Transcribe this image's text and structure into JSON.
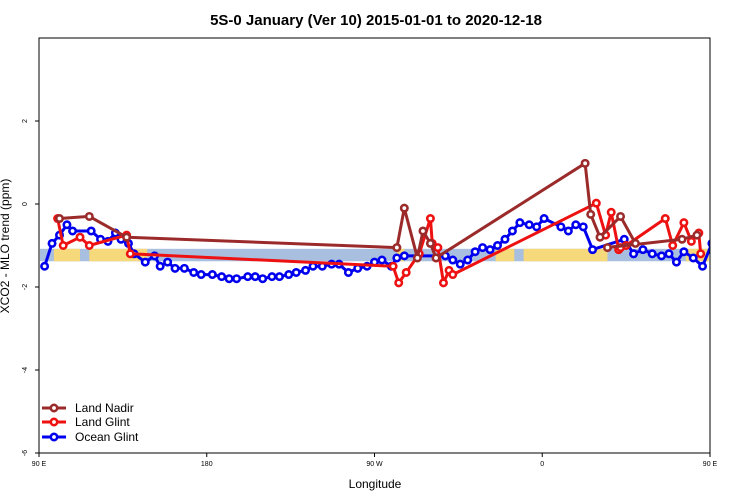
{
  "chart_data": {
    "type": "line",
    "title": "5S-0 January (Ver 10)   2015-01-01 to 2020-12-18",
    "xlabel": "Longitude",
    "ylabel": "XCO2 - MLO trend (ppm)",
    "xlim": [
      90,
      450
    ],
    "ylim": [
      -6,
      4
    ],
    "x_ticks": [
      {
        "value": 90,
        "label": "90 E"
      },
      {
        "value": 180,
        "label": "180"
      },
      {
        "value": 270,
        "label": "90 W"
      },
      {
        "value": 360,
        "label": "0"
      },
      {
        "value": 450,
        "label": "90 E"
      }
    ],
    "y_ticks": [
      {
        "value": -6,
        "label": "-6"
      },
      {
        "value": -4,
        "label": "-4"
      },
      {
        "value": -2,
        "label": "-2"
      },
      {
        "value": 0,
        "label": "0"
      },
      {
        "value": 2,
        "label": "2"
      }
    ],
    "grid": false,
    "legend_position": "bottom-left",
    "background_band": {
      "y_range": [
        -1.38,
        -1.08
      ],
      "ocean_color": "#a9bfe0",
      "land_color": "#f5d97a",
      "land_segments": [
        [
          98,
          112
        ],
        [
          117,
          148
        ],
        [
          282,
          286
        ],
        [
          335,
          345
        ],
        [
          350,
          395
        ],
        [
          437,
          452
        ]
      ]
    },
    "series": [
      {
        "name": "Land Nadir",
        "color": "#9b2b2b",
        "x": [
          101,
          117,
          137,
          282,
          286,
          293,
          296,
          300,
          303,
          383,
          386,
          391,
          402,
          410,
          395,
          435,
          443
        ],
        "y": [
          -0.35,
          -0.3,
          -0.8,
          -1.05,
          -0.1,
          -1.3,
          -0.65,
          -0.95,
          -1.3,
          0.98,
          -0.25,
          -0.8,
          -0.3,
          -0.95,
          -1.05,
          -0.85,
          -0.75
        ]
      },
      {
        "name": "Land Glint",
        "color": "#ee1111",
        "x": [
          100,
          103,
          112,
          117,
          137,
          139,
          280,
          283,
          287,
          294,
          300,
          301,
          304,
          307,
          310,
          312,
          389,
          394,
          397,
          401,
          402,
          405,
          426,
          430,
          436,
          440,
          444,
          445
        ],
        "y": [
          -0.35,
          -1.0,
          -0.8,
          -1.0,
          -0.75,
          -1.2,
          -1.5,
          -1.9,
          -1.65,
          -1.2,
          -0.35,
          -0.95,
          -1.05,
          -1.9,
          -1.6,
          -1.7,
          0.02,
          -0.75,
          -0.2,
          -1.1,
          -1.05,
          -1.0,
          -0.35,
          -1.0,
          -0.45,
          -0.9,
          -0.7,
          -1.2
        ]
      },
      {
        "name": "Ocean Glint",
        "color": "#0000ee",
        "x": [
          93,
          97,
          101,
          105,
          108,
          118,
          123,
          127,
          131,
          134,
          138,
          141,
          147,
          152,
          155,
          159,
          163,
          168,
          173,
          177,
          183,
          188,
          192,
          196,
          202,
          206,
          210,
          215,
          219,
          224,
          228,
          233,
          237,
          242,
          247,
          251,
          256,
          261,
          266,
          270,
          274,
          279,
          282,
          286,
          308,
          312,
          316,
          320,
          324,
          328,
          332,
          336,
          340,
          344,
          348,
          353,
          357,
          361,
          370,
          374,
          378,
          382,
          387,
          404,
          409,
          414,
          419,
          424,
          428,
          432,
          436,
          441,
          446,
          451,
          455,
          460,
          464,
          468
        ],
        "y": [
          -1.5,
          -0.95,
          -0.75,
          -0.5,
          -0.65,
          -0.65,
          -0.85,
          -0.9,
          -0.7,
          -0.85,
          -0.95,
          -1.2,
          -1.4,
          -1.25,
          -1.5,
          -1.4,
          -1.55,
          -1.55,
          -1.65,
          -1.7,
          -1.7,
          -1.75,
          -1.8,
          -1.8,
          -1.75,
          -1.75,
          -1.8,
          -1.75,
          -1.75,
          -1.7,
          -1.65,
          -1.6,
          -1.5,
          -1.5,
          -1.45,
          -1.45,
          -1.65,
          -1.55,
          -1.5,
          -1.4,
          -1.35,
          -1.5,
          -1.3,
          -1.25,
          -1.25,
          -1.35,
          -1.45,
          -1.35,
          -1.15,
          -1.05,
          -1.1,
          -1.0,
          -0.85,
          -0.65,
          -0.45,
          -0.5,
          -0.55,
          -0.35,
          -0.55,
          -0.65,
          -0.5,
          -0.55,
          -1.1,
          -0.85,
          -1.2,
          -1.1,
          -1.2,
          -1.25,
          -1.2,
          -1.4,
          -1.15,
          -1.3,
          -1.5,
          -0.95,
          -0.6,
          -0.4,
          -0.45,
          -0.75
        ]
      }
    ]
  }
}
